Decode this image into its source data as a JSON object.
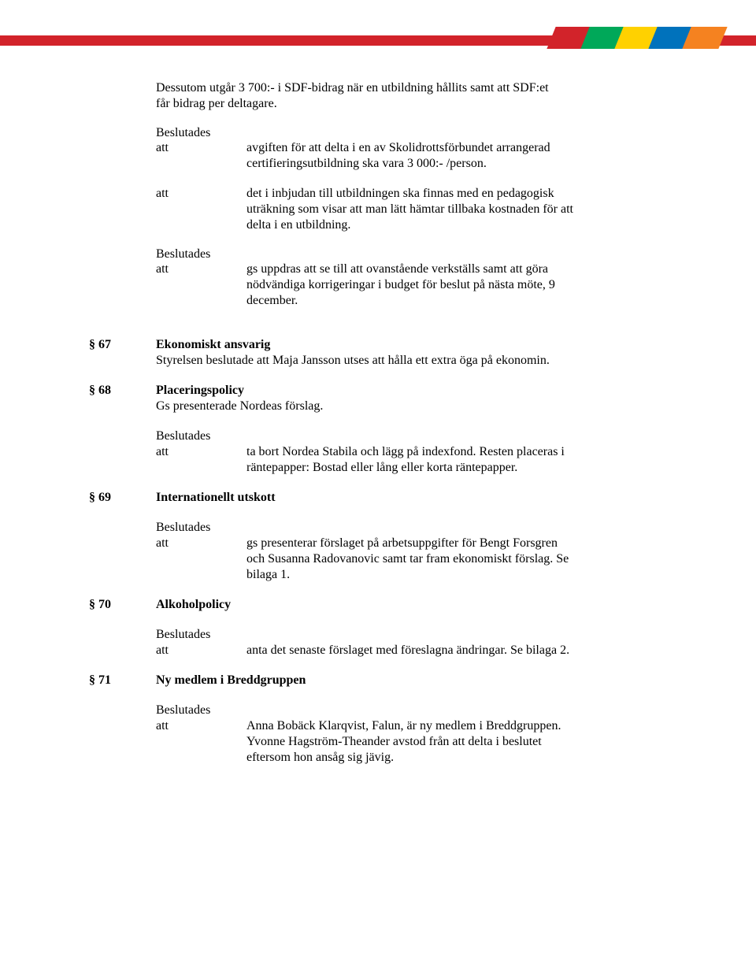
{
  "header_colors": [
    "#d2232a",
    "#00a859",
    "#ffd100",
    "#0072bc",
    "#f58220"
  ],
  "header_red": "#d2232a",
  "intro_text": "Dessutom utgår 3 700:- i SDF-bidrag när en utbildning hållits samt att SDF:et får bidrag per deltagare.",
  "b_label": "Beslutades",
  "att_label": "att",
  "att1": "avgiften för att delta i en av Skolidrottsförbundet arrangerad certifieringsutbildning ska vara 3 000:- /person.",
  "att2": "det i inbjudan till utbildningen ska finnas med en pedagogisk uträkning som visar att man lätt hämtar tillbaka kostnaden för att delta i en utbildning.",
  "att3": "gs uppdras att se till att ovanstående verkställs samt att göra nödvändiga korrigeringar i budget för beslut på nästa möte, 9 december.",
  "sections": [
    {
      "num": "§ 67",
      "title": "Ekonomiskt ansvarig",
      "body": "Styrelsen beslutade att Maja Jansson utses att hålla ett extra öga på ekonomin.",
      "has_beslutades": false
    },
    {
      "num": "§ 68",
      "title": "Placeringspolicy",
      "body": "Gs presenterade Nordeas förslag.",
      "has_beslutades": true,
      "att_text": "ta bort Nordea Stabila och lägg på indexfond. Resten placeras i räntepapper: Bostad eller lång eller korta räntepapper."
    },
    {
      "num": "§ 69",
      "title": "Internationellt utskott",
      "body": "",
      "has_beslutades": true,
      "att_text": "gs presenterar förslaget på arbetsuppgifter för Bengt Forsgren och Susanna Radovanovic samt tar fram ekonomiskt förslag. Se bilaga 1."
    },
    {
      "num": "§ 70",
      "title": "Alkoholpolicy",
      "body": "",
      "has_beslutades": true,
      "att_text": "anta det senaste förslaget med föreslagna ändringar. Se bilaga 2."
    },
    {
      "num": "§ 71",
      "title": "Ny medlem i Breddgruppen",
      "body": "",
      "has_beslutades": true,
      "att_text": "Anna Bobäck Klarqvist, Falun, är ny medlem i Breddgruppen. Yvonne Hagström-Theander avstod från att delta i beslutet eftersom hon ansåg sig jävig."
    }
  ]
}
